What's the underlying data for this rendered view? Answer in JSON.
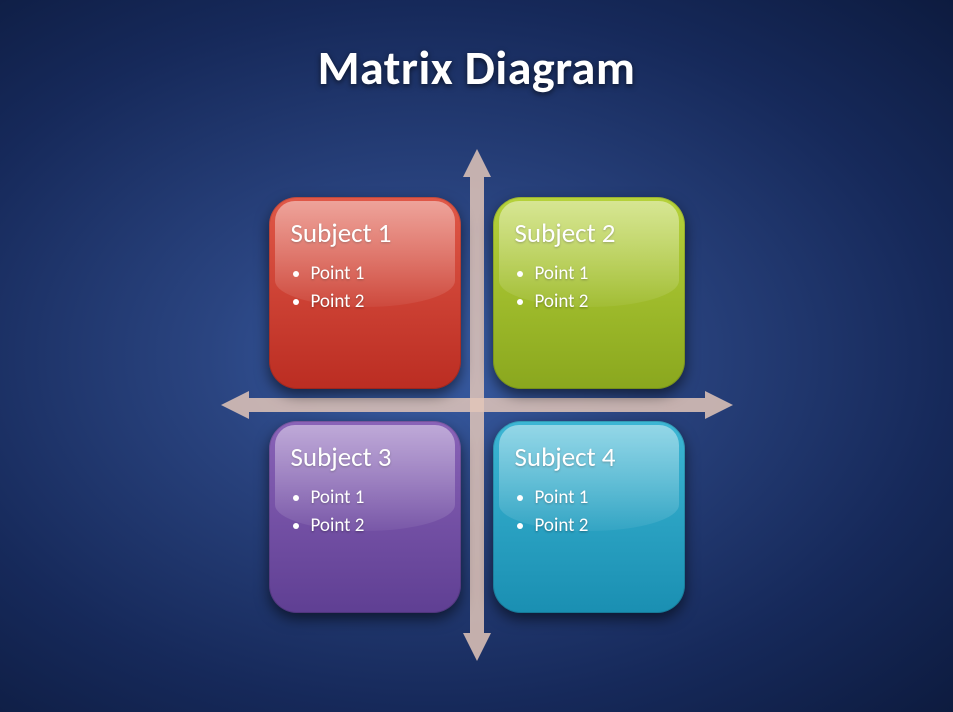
{
  "title": "Matrix Diagram",
  "background_gradient": [
    "#3a5fa8",
    "#2a4480",
    "#16295a",
    "#0d1b3f"
  ],
  "arrow_color": "#e2c6b9",
  "title_color": "#ffffff",
  "title_fontsize": 48,
  "quadrants": [
    {
      "subject": "Subject 1",
      "points": [
        "Point 1",
        "Point 2"
      ],
      "position": "top-left",
      "fill_gradient": [
        "#e05848",
        "#bb2d22"
      ],
      "text_color": "#ffffff"
    },
    {
      "subject": "Subject 2",
      "points": [
        "Point 1",
        "Point 2"
      ],
      "position": "top-right",
      "fill_gradient": [
        "#b6d23b",
        "#8aa71e"
      ],
      "text_color": "#ffffff"
    },
    {
      "subject": "Subject 3",
      "points": [
        "Point 1",
        "Point 2"
      ],
      "position": "bottom-left",
      "fill_gradient": [
        "#8a63b8",
        "#5f3f93"
      ],
      "text_color": "#ffffff"
    },
    {
      "subject": "Subject 4",
      "points": [
        "Point 1",
        "Point 2"
      ],
      "position": "bottom-right",
      "fill_gradient": [
        "#3cb6d4",
        "#1a8fb2"
      ],
      "text_color": "#ffffff"
    }
  ],
  "subject_fontsize": 27,
  "point_fontsize": 19,
  "quad_border_radius": 28
}
